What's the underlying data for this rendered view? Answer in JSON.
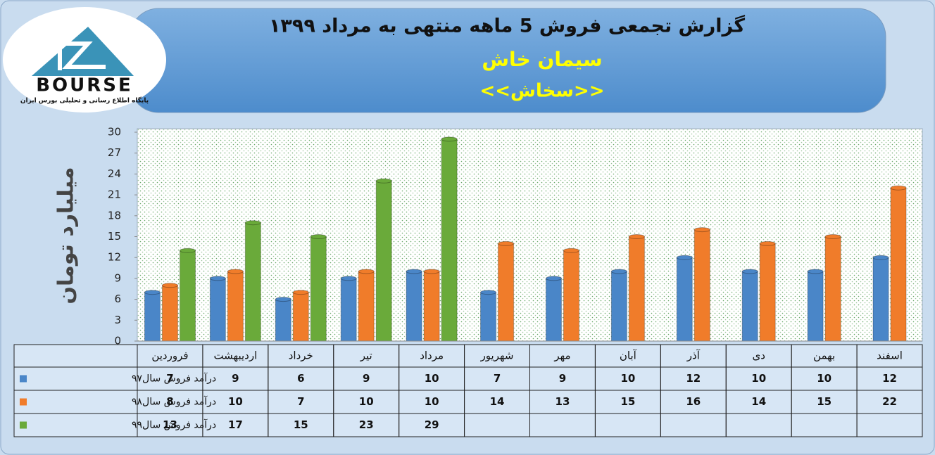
{
  "logo": {
    "text": "BOURSE",
    "caption": "پایگاه اطلاع رسانی و تحلیلی بورس ایران"
  },
  "chart_data": {
    "type": "bar",
    "title": "گزارش تجمعی فروش  5 ماهه منتهی به مرداد ۱۳۹۹",
    "subtitle": "سیمان خاش",
    "symbol": "<<سخاش>>",
    "y_label": "میلیارد تومان",
    "categories": [
      "فروردین",
      "اردیبهشت",
      "خرداد",
      "تیر",
      "مرداد",
      "شهریور",
      "مهر",
      "آبان",
      "آذر",
      "دی",
      "بهمن",
      "اسفند"
    ],
    "series": [
      {
        "name": "درآمد فروش سال۹۷",
        "color": "#4a86c8",
        "values": [
          7,
          9,
          6,
          9,
          10,
          7,
          9,
          10,
          12,
          10,
          10,
          12
        ]
      },
      {
        "name": "درآمد فروش سال۹۸",
        "color": "#f07c2a",
        "values": [
          8,
          10,
          7,
          10,
          10,
          14,
          13,
          15,
          16,
          14,
          15,
          22
        ]
      },
      {
        "name": "درآمد فروش سال۹۹",
        "color": "#6aaa3a",
        "values": [
          13,
          17,
          15,
          23,
          29,
          null,
          null,
          null,
          null,
          null,
          null,
          null
        ]
      }
    ],
    "ylim": [
      0,
      30
    ],
    "yticks": [
      0,
      3,
      6,
      9,
      12,
      15,
      18,
      21,
      24,
      27,
      30
    ],
    "grid": false
  }
}
